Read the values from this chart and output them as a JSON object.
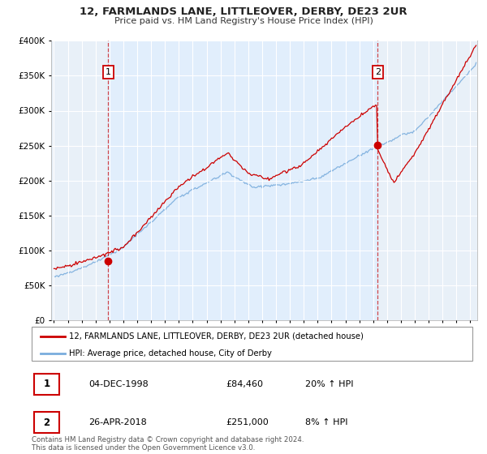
{
  "title": "12, FARMLANDS LANE, LITTLEOVER, DERBY, DE23 2UR",
  "subtitle": "Price paid vs. HM Land Registry's House Price Index (HPI)",
  "red_label": "12, FARMLANDS LANE, LITTLEOVER, DERBY, DE23 2UR (detached house)",
  "blue_label": "HPI: Average price, detached house, City of Derby",
  "point1_date": "04-DEC-1998",
  "point1_price": "£84,460",
  "point1_hpi": "20% ↑ HPI",
  "point2_date": "26-APR-2018",
  "point2_price": "£251,000",
  "point2_hpi": "8% ↑ HPI",
  "footer": "Contains HM Land Registry data © Crown copyright and database right 2024.\nThis data is licensed under the Open Government Licence v3.0.",
  "red_color": "#cc0000",
  "blue_color": "#7aaddd",
  "blue_fill": "#ddeeff",
  "point1_x": 1998.92,
  "point1_y": 84460,
  "point2_x": 2018.32,
  "point2_y": 251000,
  "ylim": [
    0,
    400000
  ],
  "xlim": [
    1994.8,
    2025.5
  ],
  "background": "#ffffff",
  "grid_color": "#cccccc",
  "chart_bg": "#e8f0f8"
}
